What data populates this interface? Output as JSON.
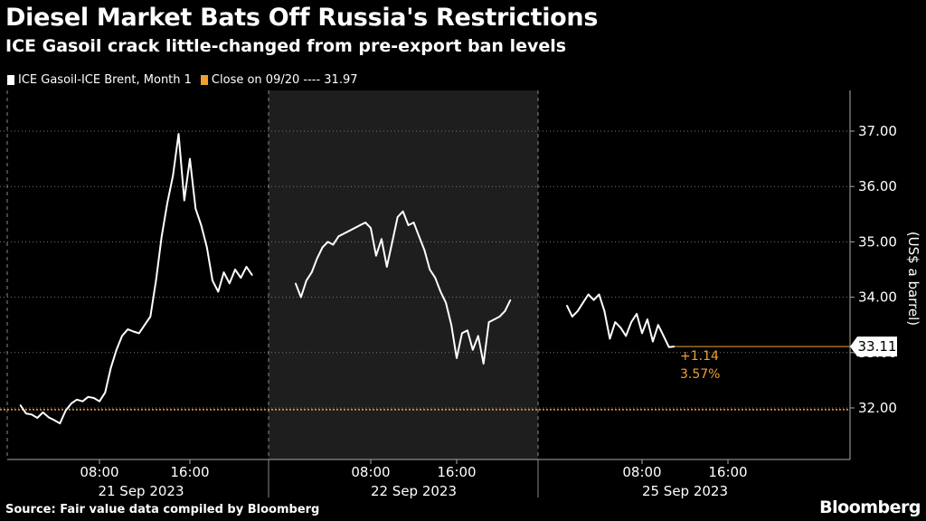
{
  "header": {
    "title": "Diesel Market Bats Off Russia's Restrictions",
    "subtitle": "ICE Gasoil crack little-changed from pre-export ban levels"
  },
  "legend": {
    "series_label": "ICE Gasoil-ICE Brent, Month 1",
    "reference_label": "Close on 09/20 ---- 31.97"
  },
  "footer": {
    "source": "Source: Fair value data compiled by Bloomberg",
    "brand": "Bloomberg"
  },
  "colors": {
    "background": "#000000",
    "line": "#ffffff",
    "accent": "#f0a030",
    "shade": "#1e1e1e",
    "grid": "#777777"
  },
  "annotation": {
    "last_value": "33.11",
    "change_abs": "+1.14",
    "change_pct": "3.57%"
  },
  "chart_data": {
    "type": "line",
    "title": "Diesel Market Bats Off Russia's Restrictions",
    "subtitle": "ICE Gasoil crack little-changed from pre-export ban levels",
    "xlabel": "",
    "ylabel": "(US$ a barrel)",
    "ylim": [
      31.4,
      37.7
    ],
    "y_ticks": [
      "32.00",
      "33.00",
      "34.00",
      "35.00",
      "36.00",
      "37.00"
    ],
    "y_tick_values": [
      32,
      33,
      34,
      35,
      36,
      37
    ],
    "x_ticks": [
      {
        "label": "08:00",
        "day": 0,
        "hour": 8
      },
      {
        "label": "16:00",
        "day": 0,
        "hour": 16
      },
      {
        "label": "08:00",
        "day": 1,
        "hour": 8
      },
      {
        "label": "16:00",
        "day": 1,
        "hour": 16
      },
      {
        "label": "08:00",
        "day": 2,
        "hour": 8
      },
      {
        "label": "16:00",
        "day": 2,
        "hour": 16
      }
    ],
    "days": [
      "21 Sep 2023",
      "22 Sep 2023",
      "25 Sep 2023"
    ],
    "reference_line": {
      "label": "Close on 09/20",
      "value": 31.97
    },
    "grid": true,
    "legend_position": "top-left",
    "series": [
      {
        "name": "ICE Gasoil-ICE Brent, Month 1",
        "segments": [
          {
            "day": "21 Sep 2023",
            "points": [
              [
                "01:00",
                32.05
              ],
              [
                "01:30",
                31.9
              ],
              [
                "02:00",
                31.88
              ],
              [
                "02:30",
                31.82
              ],
              [
                "03:00",
                31.92
              ],
              [
                "03:30",
                31.83
              ],
              [
                "04:00",
                31.78
              ],
              [
                "04:30",
                31.72
              ],
              [
                "05:00",
                31.95
              ],
              [
                "05:30",
                32.08
              ],
              [
                "06:00",
                32.15
              ],
              [
                "06:30",
                32.12
              ],
              [
                "07:00",
                32.2
              ],
              [
                "07:30",
                32.18
              ],
              [
                "08:00",
                32.12
              ],
              [
                "08:30",
                32.28
              ],
              [
                "09:00",
                32.72
              ],
              [
                "09:30",
                33.05
              ],
              [
                "10:00",
                33.3
              ],
              [
                "10:30",
                33.42
              ],
              [
                "11:00",
                33.38
              ],
              [
                "11:30",
                33.35
              ],
              [
                "12:00",
                33.5
              ],
              [
                "12:30",
                33.65
              ],
              [
                "13:00",
                34.3
              ],
              [
                "13:30",
                35.1
              ],
              [
                "14:00",
                35.7
              ],
              [
                "14:30",
                36.2
              ],
              [
                "15:00",
                36.95
              ],
              [
                "15:30",
                35.75
              ],
              [
                "16:00",
                36.5
              ],
              [
                "16:30",
                35.6
              ],
              [
                "17:00",
                35.3
              ],
              [
                "17:30",
                34.9
              ],
              [
                "18:00",
                34.3
              ],
              [
                "18:30",
                34.1
              ],
              [
                "19:00",
                34.45
              ],
              [
                "19:30",
                34.25
              ],
              [
                "20:00",
                34.5
              ],
              [
                "20:30",
                34.35
              ],
              [
                "21:00",
                34.55
              ],
              [
                "21:30",
                34.4
              ]
            ]
          },
          {
            "day": "22 Sep 2023",
            "points": [
              [
                "01:00",
                34.25
              ],
              [
                "01:30",
                34.0
              ],
              [
                "02:00",
                34.3
              ],
              [
                "02:30",
                34.45
              ],
              [
                "03:00",
                34.7
              ],
              [
                "03:30",
                34.9
              ],
              [
                "04:00",
                35.0
              ],
              [
                "04:30",
                34.95
              ],
              [
                "05:00",
                35.1
              ],
              [
                "05:30",
                35.15
              ],
              [
                "06:00",
                35.2
              ],
              [
                "06:30",
                35.25
              ],
              [
                "07:00",
                35.3
              ],
              [
                "07:30",
                35.35
              ],
              [
                "08:00",
                35.25
              ],
              [
                "08:30",
                34.75
              ],
              [
                "09:00",
                35.05
              ],
              [
                "09:30",
                34.55
              ],
              [
                "10:00",
                35.0
              ],
              [
                "10:30",
                35.45
              ],
              [
                "11:00",
                35.55
              ],
              [
                "11:30",
                35.3
              ],
              [
                "12:00",
                35.35
              ],
              [
                "12:30",
                35.1
              ],
              [
                "13:00",
                34.85
              ],
              [
                "13:30",
                34.5
              ],
              [
                "14:00",
                34.35
              ],
              [
                "14:30",
                34.1
              ],
              [
                "15:00",
                33.9
              ],
              [
                "15:30",
                33.5
              ],
              [
                "16:00",
                32.9
              ],
              [
                "16:30",
                33.35
              ],
              [
                "17:00",
                33.4
              ],
              [
                "17:30",
                33.05
              ],
              [
                "18:00",
                33.3
              ],
              [
                "18:30",
                32.8
              ],
              [
                "19:00",
                33.55
              ],
              [
                "19:30",
                33.6
              ],
              [
                "20:00",
                33.65
              ],
              [
                "20:30",
                33.75
              ],
              [
                "21:00",
                33.95
              ]
            ]
          },
          {
            "day": "25 Sep 2023",
            "points": [
              [
                "01:00",
                33.85
              ],
              [
                "01:30",
                33.65
              ],
              [
                "02:00",
                33.75
              ],
              [
                "02:30",
                33.9
              ],
              [
                "03:00",
                34.05
              ],
              [
                "03:30",
                33.95
              ],
              [
                "04:00",
                34.05
              ],
              [
                "04:30",
                33.75
              ],
              [
                "05:00",
                33.25
              ],
              [
                "05:30",
                33.55
              ],
              [
                "06:00",
                33.45
              ],
              [
                "06:30",
                33.3
              ],
              [
                "07:00",
                33.55
              ],
              [
                "07:30",
                33.7
              ],
              [
                "08:00",
                33.35
              ],
              [
                "08:30",
                33.6
              ],
              [
                "09:00",
                33.2
              ],
              [
                "09:30",
                33.5
              ],
              [
                "10:00",
                33.3
              ],
              [
                "10:30",
                33.1
              ],
              [
                "11:00",
                33.11
              ]
            ]
          }
        ]
      }
    ]
  }
}
